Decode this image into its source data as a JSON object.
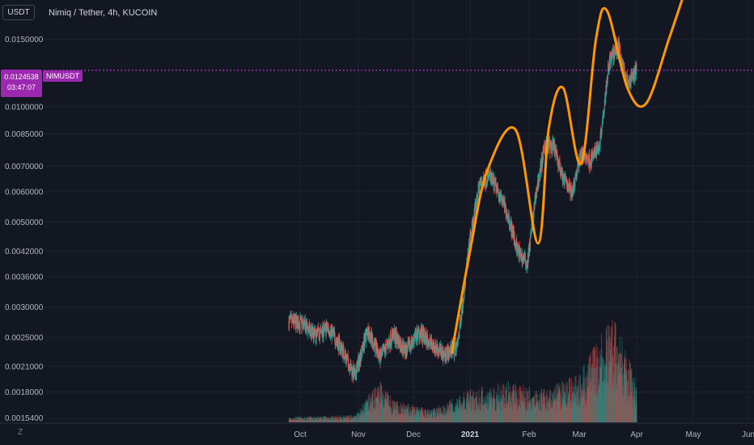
{
  "header": {
    "currency_badge": "USDT",
    "title": "Nimiq / Tether, 4h, KUCOIN"
  },
  "price_tag": {
    "price": "0.0124538",
    "countdown": "03:47:07",
    "symbol": "NIMUSDT"
  },
  "zoom_button": "Z",
  "colors": {
    "background": "#131722",
    "up_candle": "#26a69a",
    "down_candle": "#ef5350",
    "overlay_curve": "#ff9800",
    "price_line": "#e040fb",
    "price_tag_bg": "#9c27b0",
    "grid": "#1e222d"
  },
  "chart_data": {
    "type": "candlestick",
    "symbol": "NIMUSDT",
    "exchange": "KUCOIN",
    "interval": "4h",
    "y_scale": "log",
    "ylim": [
      0.0015,
      0.019
    ],
    "y_ticks": [
      "0.0150000",
      "0.0100000",
      "0.0085000",
      "0.0070000",
      "0.0060000",
      "0.0050000",
      "0.0042000",
      "0.0036000",
      "0.0030000",
      "0.0025000",
      "0.0021000",
      "0.0018000",
      "0.0015400"
    ],
    "y_ticks_visible": [
      "0"
    ],
    "x_ticks": [
      {
        "label": "Oct",
        "bold": false
      },
      {
        "label": "Nov",
        "bold": false
      },
      {
        "label": "Dec",
        "bold": false
      },
      {
        "label": "2021",
        "bold": true
      },
      {
        "label": "Feb",
        "bold": false
      },
      {
        "label": "Mar",
        "bold": false
      },
      {
        "label": "Apr",
        "bold": false
      },
      {
        "label": "May",
        "bold": false
      },
      {
        "label": "Jun",
        "bold": false
      }
    ],
    "current_price": 0.0124538,
    "price_path": [
      {
        "date": "2020-09-25",
        "close": 0.00275
      },
      {
        "date": "2020-10-02",
        "close": 0.00272
      },
      {
        "date": "2020-10-09",
        "close": 0.00252
      },
      {
        "date": "2020-10-16",
        "close": 0.00265
      },
      {
        "date": "2020-10-23",
        "close": 0.00235
      },
      {
        "date": "2020-10-30",
        "close": 0.00198
      },
      {
        "date": "2020-11-06",
        "close": 0.00262
      },
      {
        "date": "2020-11-13",
        "close": 0.0022
      },
      {
        "date": "2020-11-20",
        "close": 0.00255
      },
      {
        "date": "2020-11-27",
        "close": 0.0023
      },
      {
        "date": "2020-12-04",
        "close": 0.00258
      },
      {
        "date": "2020-12-11",
        "close": 0.0024
      },
      {
        "date": "2020-12-18",
        "close": 0.00226
      },
      {
        "date": "2020-12-25",
        "close": 0.00236
      },
      {
        "date": "2021-01-01",
        "close": 0.0045
      },
      {
        "date": "2021-01-06",
        "close": 0.0063
      },
      {
        "date": "2021-01-11",
        "close": 0.0066
      },
      {
        "date": "2021-01-16",
        "close": 0.006
      },
      {
        "date": "2021-01-21",
        "close": 0.0052
      },
      {
        "date": "2021-01-26",
        "close": 0.0042
      },
      {
        "date": "2021-01-31",
        "close": 0.0039
      },
      {
        "date": "2021-02-05",
        "close": 0.006
      },
      {
        "date": "2021-02-10",
        "close": 0.008
      },
      {
        "date": "2021-02-15",
        "close": 0.0078
      },
      {
        "date": "2021-02-20",
        "close": 0.0065
      },
      {
        "date": "2021-02-25",
        "close": 0.006
      },
      {
        "date": "2021-03-02",
        "close": 0.0076
      },
      {
        "date": "2021-03-07",
        "close": 0.0072
      },
      {
        "date": "2021-03-12",
        "close": 0.008
      },
      {
        "date": "2021-03-17",
        "close": 0.013
      },
      {
        "date": "2021-03-22",
        "close": 0.0145
      },
      {
        "date": "2021-03-27",
        "close": 0.0115
      },
      {
        "date": "2021-04-01",
        "close": 0.01245
      }
    ],
    "overlay_curve": [
      {
        "date": "2020-12-22",
        "value": 0.00228
      },
      {
        "date": "2021-01-01",
        "value": 0.0042
      },
      {
        "date": "2021-01-10",
        "value": 0.0068
      },
      {
        "date": "2021-01-25",
        "value": 0.0087
      },
      {
        "date": "2021-02-06",
        "value": 0.0044
      },
      {
        "date": "2021-02-12",
        "value": 0.0088
      },
      {
        "date": "2021-02-20",
        "value": 0.0112
      },
      {
        "date": "2021-03-02",
        "value": 0.0071
      },
      {
        "date": "2021-03-10",
        "value": 0.015
      },
      {
        "date": "2021-03-16",
        "value": 0.0178
      },
      {
        "date": "2021-03-27",
        "value": 0.0112
      },
      {
        "date": "2021-04-06",
        "value": 0.0102
      },
      {
        "date": "2021-04-18",
        "value": 0.015
      },
      {
        "date": "2021-04-25",
        "value": 0.019
      }
    ],
    "volume_profile": [
      {
        "date": "2020-09-25",
        "volume": 0.05
      },
      {
        "date": "2020-10-30",
        "volume": 0.07
      },
      {
        "date": "2020-11-13",
        "volume": 0.4
      },
      {
        "date": "2020-11-20",
        "volume": 0.2
      },
      {
        "date": "2020-12-11",
        "volume": 0.12
      },
      {
        "date": "2021-01-01",
        "volume": 0.3
      },
      {
        "date": "2021-01-20",
        "volume": 0.38
      },
      {
        "date": "2021-02-10",
        "volume": 0.3
      },
      {
        "date": "2021-03-01",
        "volume": 0.45
      },
      {
        "date": "2021-03-20",
        "volume": 1.0
      },
      {
        "date": "2021-04-01",
        "volume": 0.35
      }
    ]
  }
}
